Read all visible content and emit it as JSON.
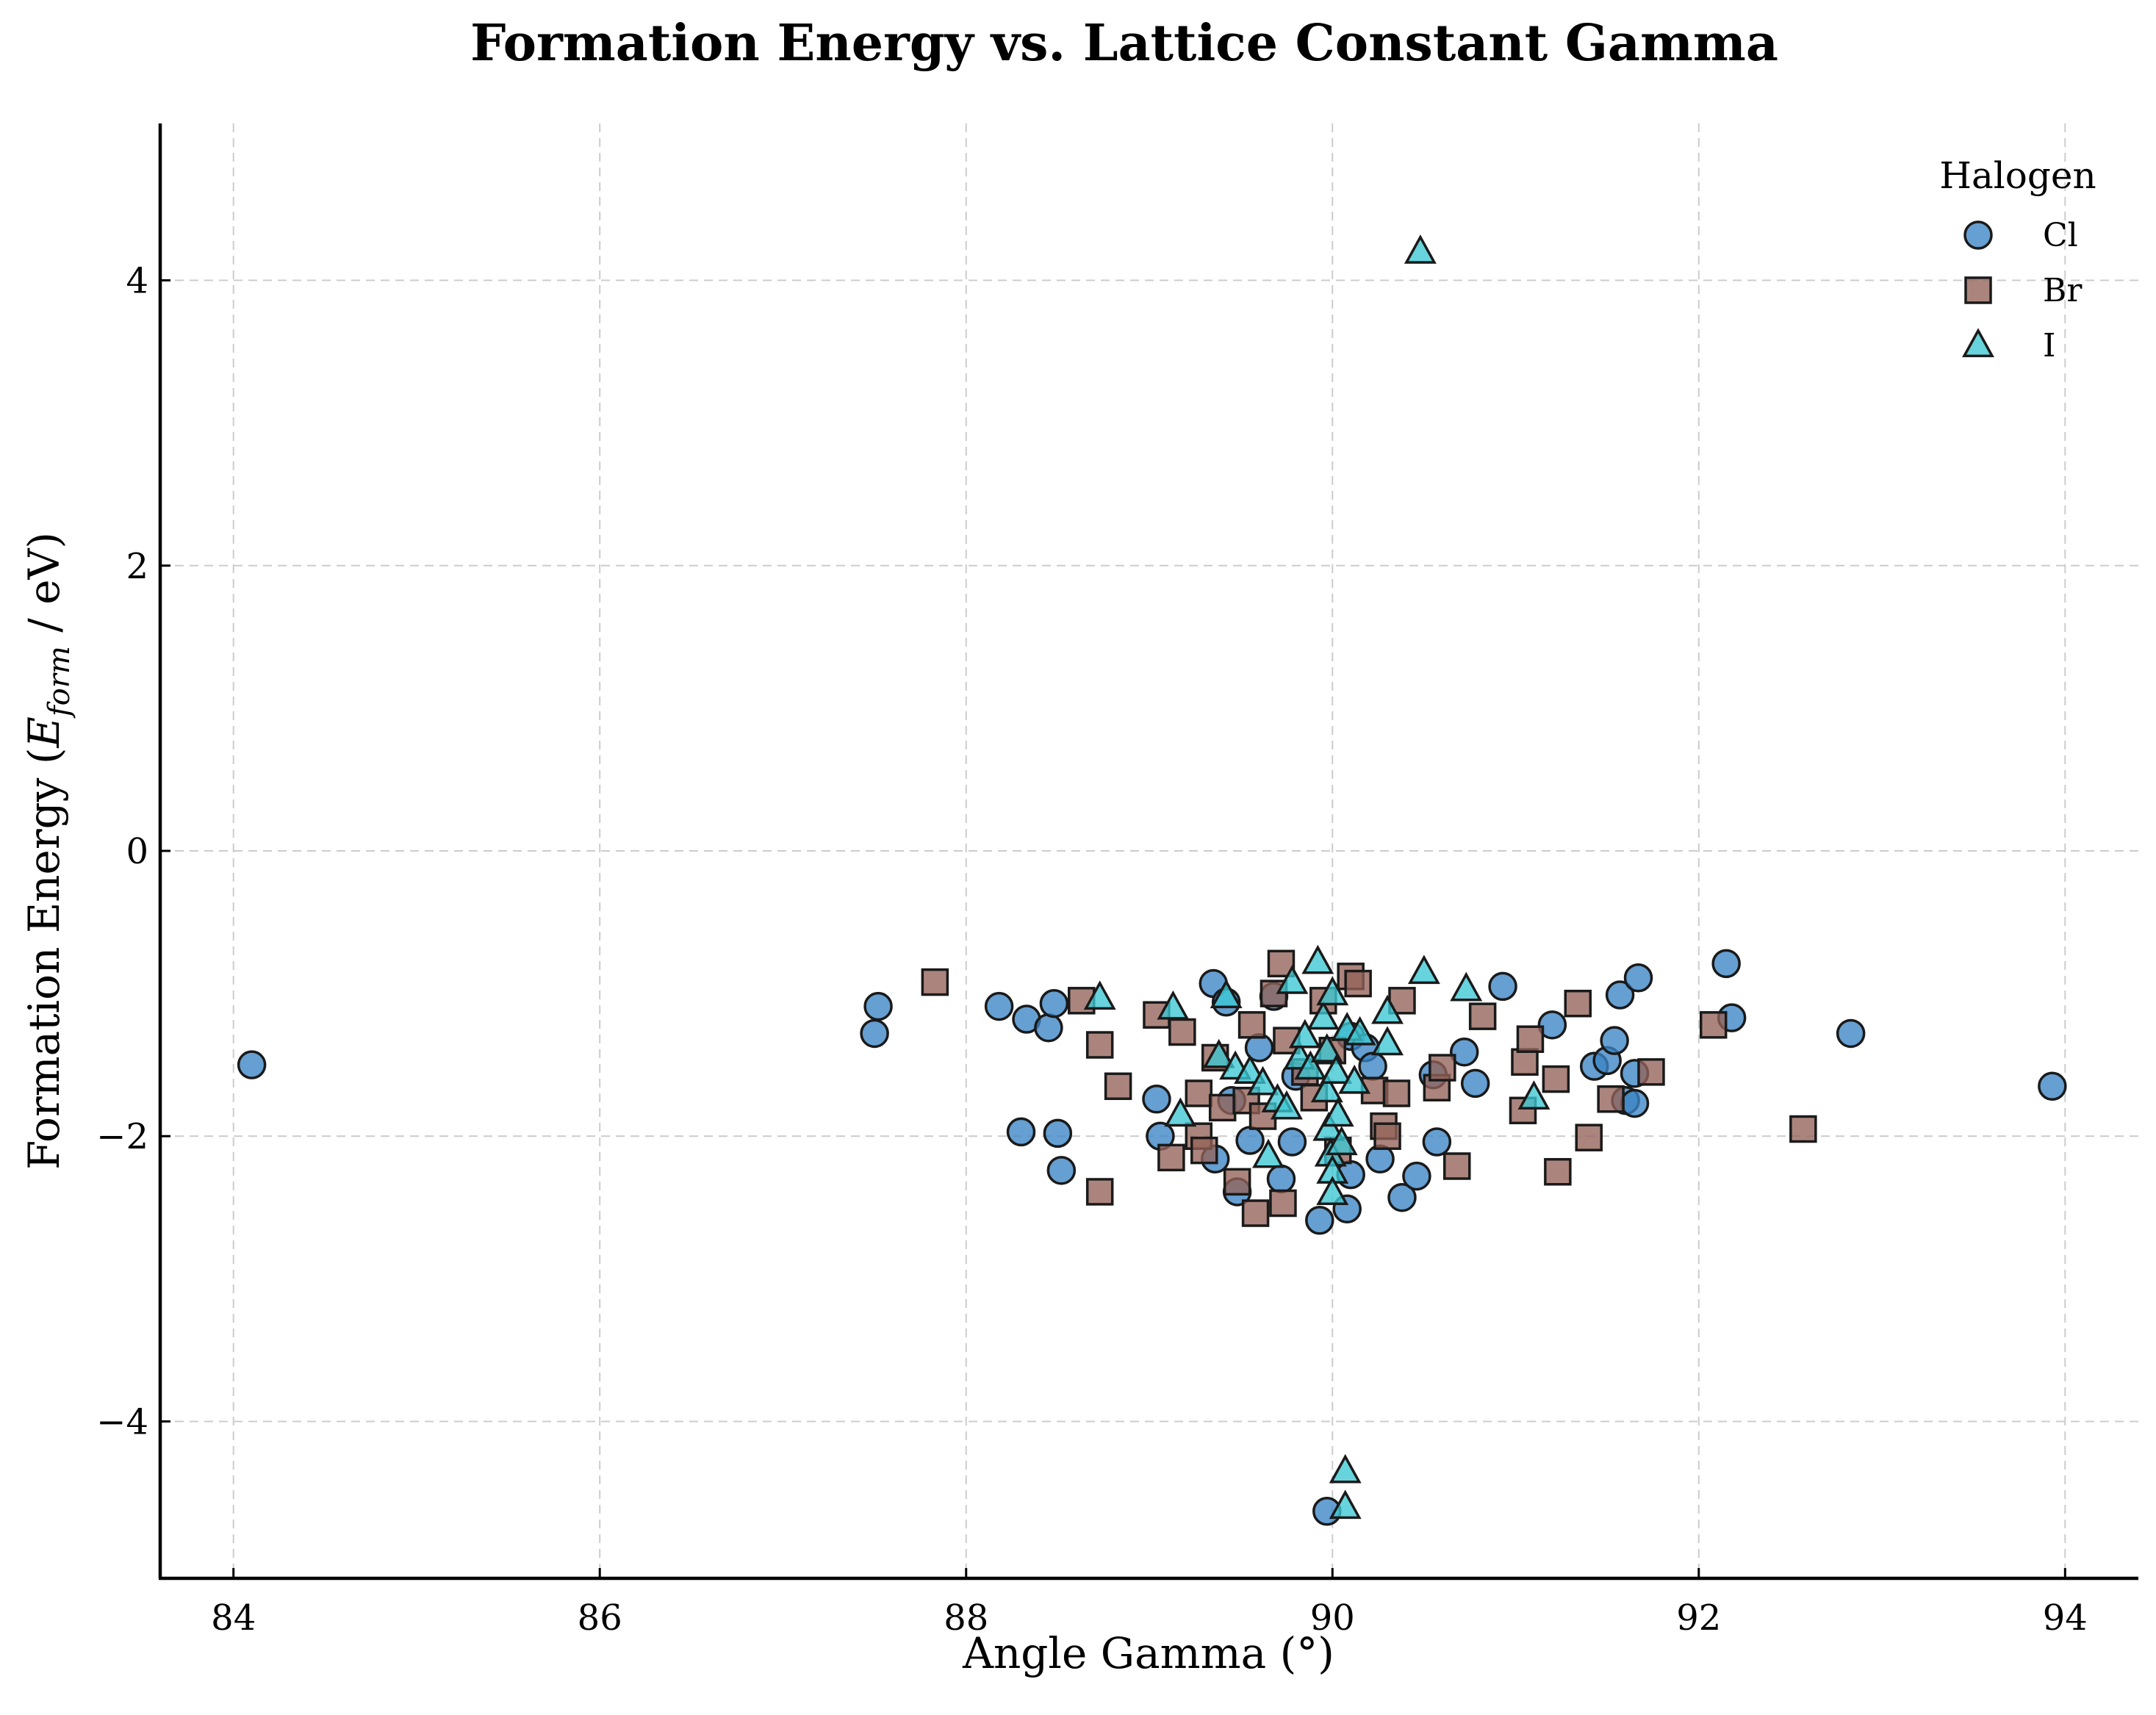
{
  "chart_data": {
    "type": "scatter",
    "title": "Formation Energy vs. Lattice Constant Gamma",
    "xlabel": "Angle Gamma (°)",
    "ylabel": {
      "prefix": "Formation Energy (",
      "symbol": "E",
      "subscript": "form",
      "suffix": " / eV)"
    },
    "xlim": [
      83.6,
      94.4
    ],
    "ylim": [
      -5.1,
      5.1
    ],
    "xticks": [
      84,
      86,
      88,
      90,
      92,
      94
    ],
    "yticks": [
      -4,
      -2,
      0,
      2,
      4
    ],
    "ytick_labels": [
      "−4",
      "−2",
      "0",
      "2",
      "4"
    ],
    "grid": true,
    "legend": {
      "title": "Halogen",
      "placement": "top-right"
    },
    "series": [
      {
        "name": "Cl",
        "marker": "circle",
        "color": "#3b84c4",
        "points": [
          [
            84.1,
            -1.5
          ],
          [
            87.5,
            -1.28
          ],
          [
            87.52,
            -1.09
          ],
          [
            88.18,
            -1.09
          ],
          [
            88.33,
            -1.18
          ],
          [
            88.45,
            -1.24
          ],
          [
            88.48,
            -1.07
          ],
          [
            88.3,
            -1.97
          ],
          [
            88.5,
            -1.98
          ],
          [
            88.52,
            -2.24
          ],
          [
            89.04,
            -1.74
          ],
          [
            89.06,
            -2.0
          ],
          [
            89.35,
            -0.93
          ],
          [
            89.42,
            -1.06
          ],
          [
            89.36,
            -2.16
          ],
          [
            89.45,
            -1.75
          ],
          [
            89.48,
            -2.39
          ],
          [
            89.55,
            -2.03
          ],
          [
            89.6,
            -1.38
          ],
          [
            89.68,
            -1.02
          ],
          [
            89.72,
            -2.3
          ],
          [
            89.78,
            -2.04
          ],
          [
            89.8,
            -1.58
          ],
          [
            89.93,
            -2.59
          ],
          [
            89.97,
            -4.63
          ],
          [
            90.1,
            -1.3
          ],
          [
            90.1,
            -2.27
          ],
          [
            90.08,
            -2.51
          ],
          [
            90.18,
            -1.38
          ],
          [
            90.22,
            -1.51
          ],
          [
            90.26,
            -2.16
          ],
          [
            90.38,
            -2.43
          ],
          [
            90.46,
            -2.28
          ],
          [
            90.55,
            -1.57
          ],
          [
            90.57,
            -2.04
          ],
          [
            90.72,
            -1.41
          ],
          [
            90.78,
            -1.63
          ],
          [
            90.93,
            -0.95
          ],
          [
            91.2,
            -1.22
          ],
          [
            91.43,
            -1.51
          ],
          [
            91.5,
            -1.47
          ],
          [
            91.54,
            -1.33
          ],
          [
            91.57,
            -1.01
          ],
          [
            91.6,
            -1.75
          ],
          [
            91.65,
            -1.77
          ],
          [
            91.65,
            -1.56
          ],
          [
            91.67,
            -0.89
          ],
          [
            92.15,
            -0.79
          ],
          [
            92.18,
            -1.17
          ],
          [
            92.83,
            -1.28
          ],
          [
            93.93,
            -1.65
          ]
        ]
      },
      {
        "name": "Br",
        "marker": "square",
        "color": "#946359",
        "points": [
          [
            87.83,
            -0.92
          ],
          [
            88.63,
            -1.05
          ],
          [
            88.73,
            -1.36
          ],
          [
            88.83,
            -1.65
          ],
          [
            88.73,
            -2.39
          ],
          [
            89.04,
            -1.15
          ],
          [
            89.12,
            -2.15
          ],
          [
            89.18,
            -1.27
          ],
          [
            89.27,
            -1.7
          ],
          [
            89.27,
            -2.0
          ],
          [
            89.3,
            -2.1
          ],
          [
            89.36,
            -1.45
          ],
          [
            89.4,
            -1.8
          ],
          [
            89.48,
            -2.32
          ],
          [
            89.53,
            -1.75
          ],
          [
            89.56,
            -1.22
          ],
          [
            89.58,
            -2.54
          ],
          [
            89.62,
            -1.86
          ],
          [
            89.68,
            -1.0
          ],
          [
            89.72,
            -0.79
          ],
          [
            89.73,
            -2.47
          ],
          [
            89.75,
            -1.33
          ],
          [
            89.85,
            -1.55
          ],
          [
            89.9,
            -1.73
          ],
          [
            89.95,
            -1.05
          ],
          [
            90.0,
            -1.4
          ],
          [
            90.03,
            -2.1
          ],
          [
            90.1,
            -0.88
          ],
          [
            90.14,
            -0.93
          ],
          [
            90.23,
            -1.68
          ],
          [
            90.28,
            -1.93
          ],
          [
            90.3,
            -2.0
          ],
          [
            90.35,
            -1.7
          ],
          [
            90.38,
            -1.05
          ],
          [
            90.57,
            -1.66
          ],
          [
            90.6,
            -1.52
          ],
          [
            90.68,
            -2.21
          ],
          [
            90.82,
            -1.16
          ],
          [
            91.04,
            -1.82
          ],
          [
            91.05,
            -1.48
          ],
          [
            91.08,
            -1.32
          ],
          [
            91.22,
            -1.6
          ],
          [
            91.23,
            -2.25
          ],
          [
            91.34,
            -1.07
          ],
          [
            91.4,
            -2.01
          ],
          [
            91.52,
            -1.74
          ],
          [
            91.74,
            -1.55
          ],
          [
            92.08,
            -1.22
          ],
          [
            92.57,
            -1.95
          ]
        ]
      },
      {
        "name": "I",
        "marker": "triangle",
        "color": "#3cc8d4",
        "points": [
          [
            88.73,
            -1.03
          ],
          [
            89.13,
            -1.1
          ],
          [
            89.17,
            -1.85
          ],
          [
            89.38,
            -1.44
          ],
          [
            89.42,
            -1.02
          ],
          [
            89.47,
            -1.52
          ],
          [
            89.55,
            -1.55
          ],
          [
            89.62,
            -1.63
          ],
          [
            89.65,
            -2.14
          ],
          [
            89.7,
            -1.75
          ],
          [
            89.75,
            -1.8
          ],
          [
            89.78,
            -0.92
          ],
          [
            89.82,
            -1.45
          ],
          [
            89.85,
            -1.3
          ],
          [
            89.88,
            -1.52
          ],
          [
            89.92,
            -0.78
          ],
          [
            89.95,
            -1.17
          ],
          [
            89.97,
            -1.4
          ],
          [
            89.97,
            -1.68
          ],
          [
            89.98,
            -1.95
          ],
          [
            89.99,
            -2.13
          ],
          [
            90.0,
            -2.25
          ],
          [
            90.0,
            -2.4
          ],
          [
            90.0,
            -1.0
          ],
          [
            90.02,
            -1.55
          ],
          [
            90.03,
            -1.85
          ],
          [
            90.05,
            -2.05
          ],
          [
            90.07,
            -4.6
          ],
          [
            90.07,
            -4.35
          ],
          [
            90.08,
            -1.25
          ],
          [
            90.12,
            -1.62
          ],
          [
            90.15,
            -1.28
          ],
          [
            90.3,
            -1.13
          ],
          [
            90.3,
            -1.35
          ],
          [
            90.48,
            4.2
          ],
          [
            90.5,
            -0.85
          ],
          [
            90.73,
            -0.97
          ],
          [
            91.1,
            -1.73
          ]
        ]
      }
    ]
  }
}
